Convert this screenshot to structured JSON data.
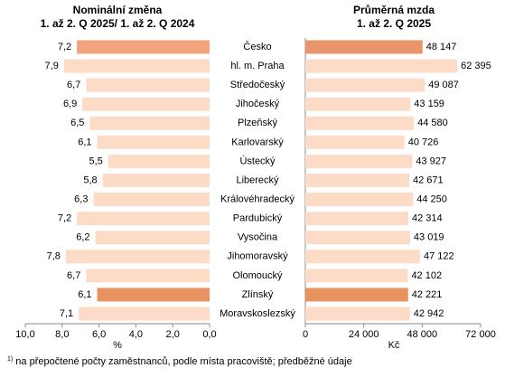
{
  "chart_data": [
    {
      "type": "bar",
      "orientation": "horizontal",
      "title": "Nominální změna",
      "subtitle": "1. až 2. Q 2025/ 1. až 2. Q 2024",
      "categories": [
        "Česko",
        "hl. m. Praha",
        "Středočeský",
        "Jihočeský",
        "Plzeňský",
        "Karlovarský",
        "Ústecký",
        "Liberecký",
        "Královéhradecký",
        "Pardubický",
        "Vysočina",
        "Jihomoravský",
        "Olomoucký",
        "Zlínský",
        "Moravskoslezský"
      ],
      "values": [
        7.2,
        7.9,
        6.7,
        6.9,
        6.5,
        6.1,
        5.5,
        5.8,
        6.3,
        7.2,
        6.2,
        7.8,
        6.7,
        6.1,
        7.1
      ],
      "value_labels": [
        "7,2",
        "7,9",
        "6,7",
        "6,9",
        "6,5",
        "6,1",
        "5,5",
        "5,8",
        "6,3",
        "7,2",
        "6,2",
        "7,8",
        "6,7",
        "6,1",
        "7,1"
      ],
      "colors": [
        "#f2a57c",
        "#fcdcc6",
        "#fcdcc6",
        "#fcdcc6",
        "#fcdcc6",
        "#fcdcc6",
        "#fcdcc6",
        "#fcdcc6",
        "#fcdcc6",
        "#fcdcc6",
        "#fcdcc6",
        "#fcdcc6",
        "#fcdcc6",
        "#e8935f",
        "#fcdcc6"
      ],
      "xlim": [
        10,
        0
      ],
      "xticks": [
        {
          "value": 10,
          "label": "10,0"
        },
        {
          "value": 8,
          "label": "8,0"
        },
        {
          "value": 6,
          "label": "6,0"
        },
        {
          "value": 4,
          "label": "4,0"
        },
        {
          "value": 2,
          "label": "2,0"
        },
        {
          "value": 0,
          "label": "0,0"
        }
      ],
      "xlabel": "%"
    },
    {
      "type": "bar",
      "orientation": "horizontal",
      "title": "Průměrná mzda",
      "subtitle": "1. až 2. Q 2025",
      "values": [
        48147,
        62395,
        49087,
        43159,
        44580,
        40726,
        43927,
        42671,
        44250,
        42314,
        43019,
        47122,
        42102,
        42221,
        42942
      ],
      "value_labels": [
        "48 147",
        "62 395",
        "49 087",
        "43 159",
        "44 580",
        "40 726",
        "43 927",
        "42 671",
        "44 250",
        "42 314",
        "43 019",
        "47 122",
        "42 102",
        "42 221",
        "42 942"
      ],
      "colors": [
        "#e8956b",
        "#fcdcc6",
        "#fcdcc6",
        "#fcdcc6",
        "#fcdcc6",
        "#fcdcc6",
        "#fcdcc6",
        "#fcdcc6",
        "#fcdcc6",
        "#fcdcc6",
        "#fcdcc6",
        "#fcdcc6",
        "#fcdcc6",
        "#e8935f",
        "#fcdcc6"
      ],
      "xlim": [
        0,
        72000
      ],
      "xticks": [
        0,
        {
          "value": 24000,
          "label": "24 000"
        },
        {
          "value": 48000,
          "label": "48 000"
        },
        {
          "value": 72000,
          "label": "72 000"
        }
      ],
      "xlabel": "Kč"
    }
  ],
  "footnote": {
    "marker": "1)",
    "text": " na přepočtené počty zaměstnanců, podle místa pracoviště; předběžné údaje"
  }
}
